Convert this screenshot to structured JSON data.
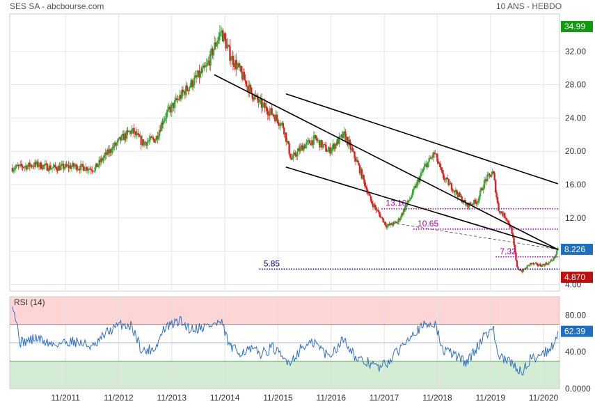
{
  "header": {
    "title": "SES SA - abcbourse.com",
    "period": "10 ANS - HEBDO"
  },
  "colors": {
    "up": "#33aa33",
    "down": "#dd2222",
    "trend": "#000000",
    "level": "#aa00aa",
    "support": "#000088",
    "rsi": "#2f6fbf",
    "green_tag": "#119911",
    "blue_tag": "#1f6fbf",
    "red_tag": "#bb1111"
  },
  "chart_data": [
    {
      "type": "candlestick",
      "title": "",
      "xlabel": "",
      "ylabel": "",
      "ylim": [
        3.2,
        36.5
      ],
      "x_ticks": [
        "11/2011",
        "11/2012",
        "11/2013",
        "11/2014",
        "11/2015",
        "11/2016",
        "11/2017",
        "11/2018",
        "11/2019",
        "11/2020"
      ],
      "y_ticks": [
        "4.00",
        "8.00",
        "12.00",
        "16.00",
        "20.00",
        "24.00",
        "28.00",
        "32.00"
      ],
      "price_path": [
        [
          2010.85,
          18.0
        ],
        [
          2011.3,
          18.4
        ],
        [
          2011.6,
          18.0
        ],
        [
          2012.0,
          18.2
        ],
        [
          2012.4,
          17.9
        ],
        [
          2012.6,
          19.5
        ],
        [
          2012.9,
          21.5
        ],
        [
          2013.1,
          22.5
        ],
        [
          2013.3,
          21.0
        ],
        [
          2013.55,
          21.5
        ],
        [
          2013.7,
          24.0
        ],
        [
          2014.0,
          26.5
        ],
        [
          2014.2,
          28.0
        ],
        [
          2014.5,
          30.0
        ],
        [
          2014.65,
          32.5
        ],
        [
          2014.78,
          34.5
        ],
        [
          2014.95,
          31.5
        ],
        [
          2015.1,
          30.0
        ],
        [
          2015.35,
          27.0
        ],
        [
          2015.55,
          25.5
        ],
        [
          2015.75,
          24.5
        ],
        [
          2015.95,
          23.0
        ],
        [
          2016.1,
          19.0
        ],
        [
          2016.3,
          20.5
        ],
        [
          2016.55,
          21.5
        ],
        [
          2016.8,
          20.0
        ],
        [
          2017.1,
          22.0
        ],
        [
          2017.35,
          18.5
        ],
        [
          2017.6,
          14.0
        ],
        [
          2017.75,
          12.5
        ],
        [
          2017.9,
          11.0
        ],
        [
          2018.1,
          11.5
        ],
        [
          2018.35,
          14.5
        ],
        [
          2018.6,
          18.0
        ],
        [
          2018.8,
          19.8
        ],
        [
          2018.95,
          17.0
        ],
        [
          2019.15,
          15.5
        ],
        [
          2019.4,
          13.5
        ],
        [
          2019.6,
          14.0
        ],
        [
          2019.75,
          16.5
        ],
        [
          2019.9,
          17.5
        ],
        [
          2020.0,
          13.0
        ],
        [
          2020.15,
          12.0
        ],
        [
          2020.25,
          10.5
        ],
        [
          2020.35,
          6.0
        ],
        [
          2020.45,
          5.6
        ],
        [
          2020.6,
          6.5
        ],
        [
          2020.8,
          6.3
        ],
        [
          2020.95,
          6.6
        ],
        [
          2021.05,
          7.2
        ],
        [
          2021.12,
          8.2
        ]
      ],
      "trendlines": [
        {
          "from": [
            2014.65,
            29.2
          ],
          "to": [
            2021.12,
            8.2
          ]
        },
        {
          "from": [
            2016.0,
            18.1
          ],
          "to": [
            2021.12,
            8.2
          ]
        },
        {
          "from": [
            2016.0,
            26.9
          ],
          "to": [
            2021.12,
            16.1
          ]
        }
      ],
      "dashed_line": {
        "from": [
          2018.0,
          11.4
        ],
        "to": [
          2021.12,
          8.2
        ]
      },
      "levels": [
        {
          "label": "13.10",
          "value": 13.1,
          "from": 2017.8,
          "color_key": "level"
        },
        {
          "label": "10.65",
          "value": 10.65,
          "from": 2018.4,
          "color_key": "level"
        },
        {
          "label": "7.32",
          "value": 7.32,
          "from": 2019.95,
          "color_key": "level"
        },
        {
          "label": "5.85",
          "value": 5.85,
          "from": 2015.5,
          "color_key": "support"
        }
      ],
      "tags": [
        {
          "label": "34.99",
          "value": 34.99,
          "color_key": "green_tag"
        },
        {
          "label": "8.226",
          "value": 8.226,
          "color_key": "blue_tag"
        },
        {
          "label": "4.870",
          "value": 4.87,
          "color_key": "red_tag"
        }
      ]
    },
    {
      "type": "line",
      "title": "RSI (14)",
      "ylim": [
        0,
        100
      ],
      "y_ticks": [
        "0.0000",
        "40.00",
        "80.00"
      ],
      "overbought": 70,
      "oversold": 30,
      "middle": 50,
      "current_label": "62.39",
      "current_value": 62.39,
      "rsi_path": [
        [
          2010.85,
          95
        ],
        [
          2011.0,
          50
        ],
        [
          2011.3,
          55
        ],
        [
          2011.6,
          48
        ],
        [
          2012.0,
          52
        ],
        [
          2012.4,
          45
        ],
        [
          2012.6,
          60
        ],
        [
          2012.9,
          70
        ],
        [
          2013.1,
          68
        ],
        [
          2013.3,
          40
        ],
        [
          2013.55,
          45
        ],
        [
          2013.7,
          65
        ],
        [
          2014.0,
          74
        ],
        [
          2014.2,
          65
        ],
        [
          2014.5,
          68
        ],
        [
          2014.65,
          70
        ],
        [
          2014.78,
          72
        ],
        [
          2014.95,
          45
        ],
        [
          2015.1,
          40
        ],
        [
          2015.35,
          42
        ],
        [
          2015.55,
          38
        ],
        [
          2015.75,
          45
        ],
        [
          2015.95,
          32
        ],
        [
          2016.1,
          30
        ],
        [
          2016.3,
          45
        ],
        [
          2016.55,
          50
        ],
        [
          2016.8,
          35
        ],
        [
          2017.1,
          55
        ],
        [
          2017.35,
          30
        ],
        [
          2017.6,
          28
        ],
        [
          2017.75,
          22
        ],
        [
          2017.9,
          28
        ],
        [
          2018.1,
          40
        ],
        [
          2018.35,
          60
        ],
        [
          2018.6,
          68
        ],
        [
          2018.8,
          72
        ],
        [
          2018.95,
          42
        ],
        [
          2019.15,
          38
        ],
        [
          2019.4,
          28
        ],
        [
          2019.6,
          45
        ],
        [
          2019.75,
          60
        ],
        [
          2019.9,
          65
        ],
        [
          2020.0,
          35
        ],
        [
          2020.15,
          30
        ],
        [
          2020.25,
          28
        ],
        [
          2020.35,
          22
        ],
        [
          2020.45,
          18
        ],
        [
          2020.6,
          32
        ],
        [
          2020.8,
          38
        ],
        [
          2020.95,
          42
        ],
        [
          2021.05,
          50
        ],
        [
          2021.12,
          62.39
        ]
      ]
    }
  ]
}
